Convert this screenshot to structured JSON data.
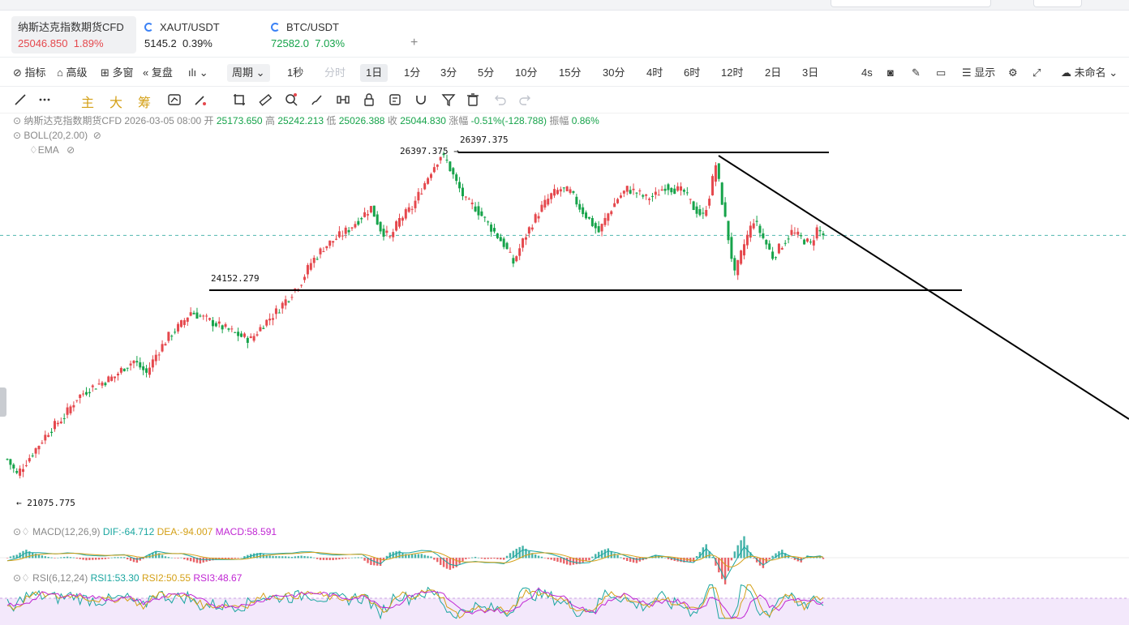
{
  "tabs": [
    {
      "name": "纳斯达克指数期货CFD",
      "price": "25046.850",
      "change": "1.89%",
      "color": "#e5484d",
      "icon": ""
    },
    {
      "name": "XAUT/USDT",
      "price": "5145.2",
      "change": "0.39%",
      "color": "#222222",
      "icon": "coin-icon"
    },
    {
      "name": "BTC/USDT",
      "price": "72582.0",
      "change": "7.03%",
      "color": "#16a34a",
      "icon": "coin-icon"
    }
  ],
  "add_tab": "+",
  "toolbar": {
    "indicator": "指标",
    "advanced": "高级",
    "multi_window": "多窗",
    "replay": "复盘",
    "period": "周期",
    "intervals": [
      "1秒",
      "分时",
      "1日",
      "1分",
      "3分",
      "5分",
      "10分",
      "15分",
      "30分",
      "4时",
      "6时",
      "12时",
      "2日",
      "3日"
    ],
    "active_interval": "1日",
    "disabled_interval": "分时",
    "refresh": "4s",
    "display": "显示",
    "layout_name": "未命名"
  },
  "drawing": {
    "main": "主",
    "big": "大",
    "chip": "筹"
  },
  "info": {
    "symbol": "纳斯达克指数期货CFD",
    "date": "2026-03-05 08:00",
    "open_label": "开",
    "open": "25173.650",
    "high_label": "高",
    "high": "25242.213",
    "low_label": "低",
    "low": "25026.388",
    "close_label": "收",
    "close": "25044.830",
    "change_label": "涨幅",
    "change": "-0.51%(-128.788)",
    "amp_label": "振幅",
    "amp": "0.86%",
    "boll": "BOLL(20,2.00)",
    "ema": "EMA"
  },
  "macd": {
    "label": "MACD(12,26,9)",
    "dif": "DIF:-64.712",
    "dea": "DEA:-94.007",
    "macd": "MACD:58.591"
  },
  "rsi": {
    "label": "RSI(6,12,24)",
    "rsi1": "RSI1:53.30",
    "rsi2": "RSI2:50.55",
    "rsi3": "RSI3:48.67"
  },
  "chart_data": {
    "type": "candlestick",
    "annotations": {
      "high_label": "26397.375",
      "high_arrow_label": "26397.375",
      "mid_label": "24152.279",
      "low_label": "21075.775"
    },
    "levels": {
      "resistance": 26397.375,
      "support": 24152.279,
      "current": 25044.83
    },
    "colors": {
      "up": "#e5484d",
      "down": "#16a34a",
      "current_line": "#26a69a"
    },
    "path_knots": [
      [
        0,
        21400
      ],
      [
        3,
        21150
      ],
      [
        8,
        21500
      ],
      [
        13,
        21850
      ],
      [
        18,
        22100
      ],
      [
        22,
        22400
      ],
      [
        26,
        22550
      ],
      [
        30,
        22650
      ],
      [
        34,
        22750
      ],
      [
        37,
        22900
      ],
      [
        40,
        23000
      ],
      [
        44,
        22800
      ],
      [
        47,
        23100
      ],
      [
        51,
        23400
      ],
      [
        55,
        23600
      ],
      [
        58,
        23800
      ],
      [
        62,
        23700
      ],
      [
        66,
        23600
      ],
      [
        70,
        23500
      ],
      [
        74,
        23400
      ],
      [
        77,
        23350
      ],
      [
        81,
        23600
      ],
      [
        85,
        23800
      ],
      [
        89,
        24050
      ],
      [
        93,
        24300
      ],
      [
        96,
        24600
      ],
      [
        100,
        24850
      ],
      [
        104,
        25000
      ],
      [
        108,
        25150
      ],
      [
        112,
        25350
      ],
      [
        115,
        25500
      ],
      [
        118,
        25150
      ],
      [
        121,
        25000
      ],
      [
        124,
        25300
      ],
      [
        128,
        25500
      ],
      [
        131,
        25800
      ],
      [
        134,
        26100
      ],
      [
        137,
        26350
      ],
      [
        139,
        26250
      ],
      [
        142,
        25900
      ],
      [
        145,
        25600
      ],
      [
        148,
        25500
      ],
      [
        151,
        25300
      ],
      [
        154,
        25100
      ],
      [
        157,
        24900
      ],
      [
        160,
        24600
      ],
      [
        163,
        24950
      ],
      [
        166,
        25250
      ],
      [
        169,
        25500
      ],
      [
        172,
        25700
      ],
      [
        175,
        25800
      ],
      [
        178,
        25750
      ],
      [
        181,
        25500
      ],
      [
        184,
        25300
      ],
      [
        187,
        25100
      ],
      [
        190,
        25400
      ],
      [
        193,
        25650
      ],
      [
        196,
        25800
      ],
      [
        199,
        25750
      ],
      [
        202,
        25650
      ],
      [
        205,
        25700
      ],
      [
        208,
        25850
      ],
      [
        211,
        25800
      ],
      [
        214,
        25750
      ],
      [
        217,
        25500
      ],
      [
        220,
        25350
      ],
      [
        222,
        25700
      ],
      [
        224,
        26200
      ],
      [
        226,
        25600
      ],
      [
        228,
        25000
      ],
      [
        230,
        24400
      ],
      [
        233,
        24900
      ],
      [
        236,
        25300
      ],
      [
        239,
        25000
      ],
      [
        242,
        24700
      ],
      [
        245,
        24900
      ],
      [
        248,
        25100
      ],
      [
        251,
        25000
      ],
      [
        254,
        24900
      ],
      [
        256,
        25150
      ],
      [
        258,
        25050
      ]
    ],
    "macd_values": {
      "dif": -64.712,
      "dea": -94.007,
      "macd": 58.591
    },
    "rsi_values": {
      "rsi1": 53.3,
      "rsi2": 50.55,
      "rsi3": 48.67
    }
  }
}
